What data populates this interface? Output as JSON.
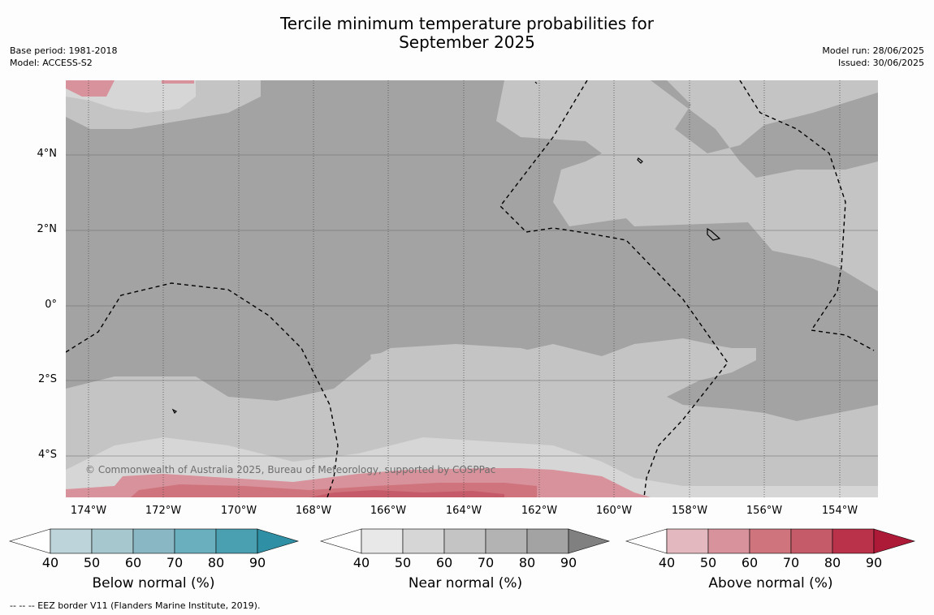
{
  "title_line1": "Tercile minimum temperature probabilities for",
  "title_line2": "September 2025",
  "meta_left": [
    "Base period: 1981-2018",
    "Model: ACCESS-S2"
  ],
  "meta_right": [
    "Model run: 28/06/2025",
    "Issued: 30/06/2025"
  ],
  "copyright": "© Commonwealth of Australia 2025, Bureau of Meteorology, supported by COSPPac",
  "lat_labels": [
    "4°N",
    "2°N",
    "0°",
    "2°S",
    "4°S"
  ],
  "lon_labels": [
    "174°W",
    "172°W",
    "170°W",
    "168°W",
    "166°W",
    "164°W",
    "162°W",
    "160°W",
    "158°W",
    "156°W",
    "154°W"
  ],
  "colorbars": [
    {
      "label": "Below normal (%)",
      "ticks": [
        "40",
        "50",
        "60",
        "70",
        "80",
        "90"
      ],
      "colors": [
        "#bcd4da",
        "#a6c7cd",
        "#89b8c4",
        "#6aafbe",
        "#4a9fb0",
        "#2f90a5"
      ]
    },
    {
      "label": "Near normal (%)",
      "ticks": [
        "40",
        "50",
        "60",
        "70",
        "80",
        "90"
      ],
      "colors": [
        "#e8e8e8",
        "#d6d6d6",
        "#c4c4c4",
        "#b3b3b3",
        "#a3a3a3",
        "#808080"
      ]
    },
    {
      "label": "Above normal (%)",
      "ticks": [
        "40",
        "50",
        "60",
        "70",
        "80",
        "90"
      ],
      "colors": [
        "#e3b9bf",
        "#d8929b",
        "#cf747d",
        "#c55b68",
        "#b9324a",
        "#ad1a38"
      ]
    }
  ],
  "footnote": "--  --  -- EEZ border V11 (Flanders Marine Institute, 2019)."
}
